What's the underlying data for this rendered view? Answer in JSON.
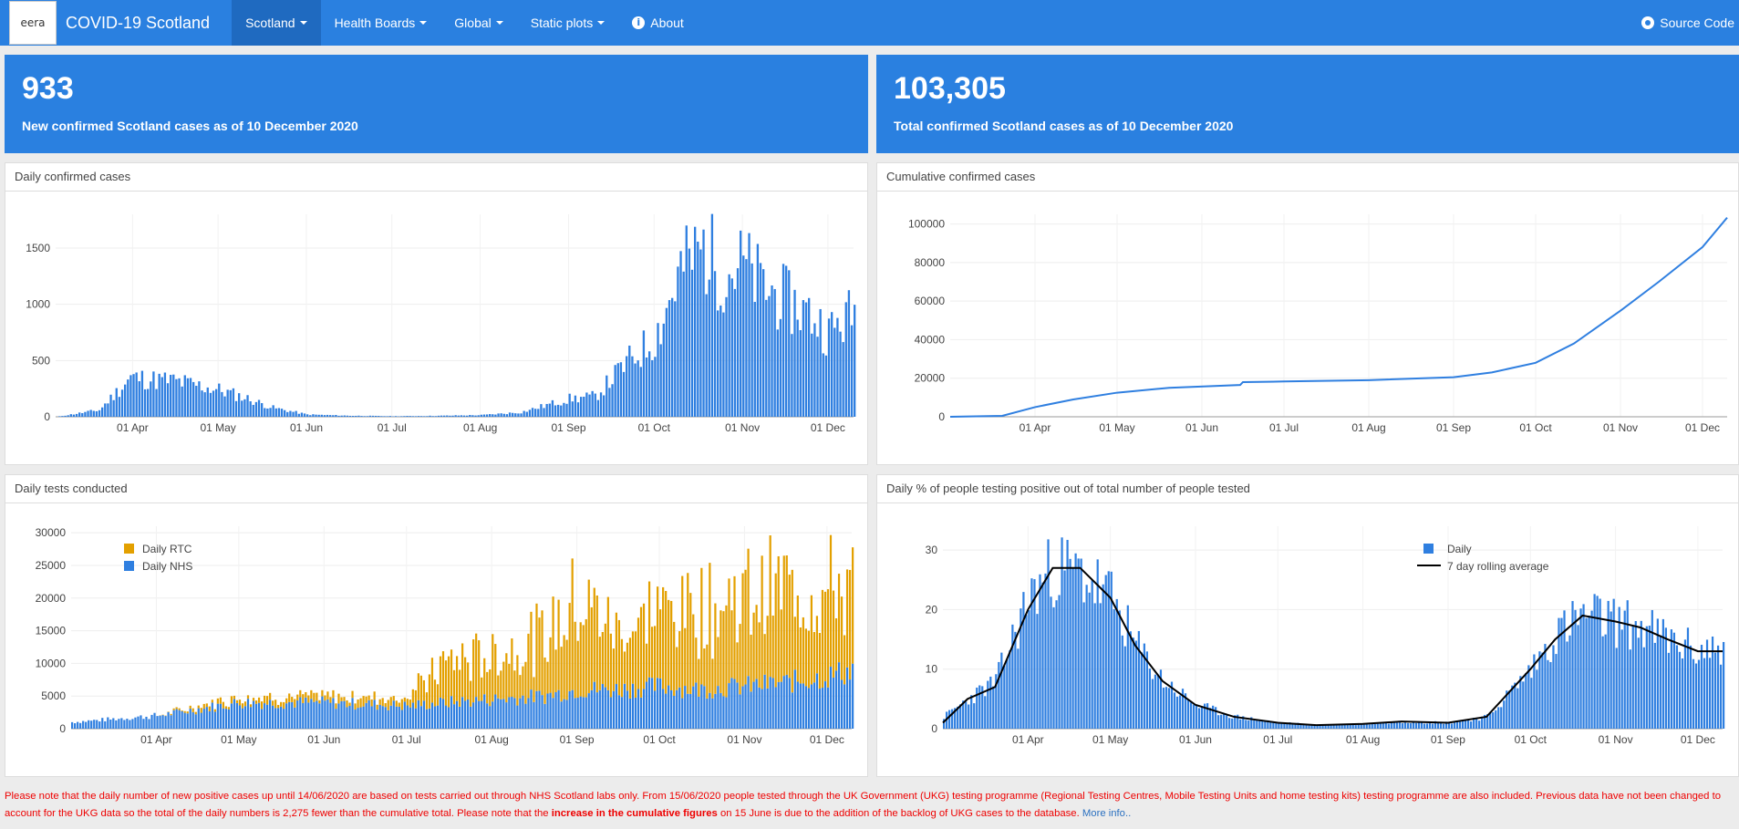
{
  "header": {
    "logo_text": "eera",
    "brand": "COVID-19 Scotland",
    "nav": [
      {
        "label": "Scotland",
        "dropdown": true,
        "active": true
      },
      {
        "label": "Health Boards",
        "dropdown": true,
        "active": false
      },
      {
        "label": "Global",
        "dropdown": true,
        "active": false
      },
      {
        "label": "Static plots",
        "dropdown": true,
        "active": false
      }
    ],
    "about": "About",
    "source_code": "Source Code"
  },
  "valueboxes": {
    "new_cases": {
      "value": "933",
      "subtitle": "New confirmed Scotland cases as of 10 December 2020"
    },
    "total_cases": {
      "value": "103,305",
      "subtitle": "Total confirmed Scotland cases as of 10 December 2020"
    }
  },
  "panels": {
    "daily": "Daily confirmed cases",
    "cumulative": "Cumulative confirmed cases",
    "tests": "Daily tests conducted",
    "positivity": "Daily % of people testing positive out of total number of people tested"
  },
  "colors": {
    "accent": "#2a80e0",
    "bar_blue": "#2f7fe0",
    "bar_orange": "#e3a000"
  },
  "chart_data": [
    {
      "type": "bar",
      "title": "Daily confirmed cases",
      "x": [
        "2020-03-05",
        "2020-03-20",
        "2020-03-31",
        "2020-04-08",
        "2020-04-15",
        "2020-04-25",
        "2020-05-01",
        "2020-05-10",
        "2020-05-20",
        "2020-06-01",
        "2020-06-15",
        "2020-07-01",
        "2020-07-15",
        "2020-08-01",
        "2020-08-15",
        "2020-09-01",
        "2020-09-10",
        "2020-09-20",
        "2020-10-01",
        "2020-10-10",
        "2020-10-18",
        "2020-10-25",
        "2020-11-01",
        "2020-11-08",
        "2020-11-15",
        "2020-11-25",
        "2020-12-01",
        "2020-12-10"
      ],
      "values": [
        0,
        60,
        350,
        330,
        320,
        270,
        240,
        170,
        80,
        20,
        10,
        5,
        8,
        15,
        40,
        160,
        180,
        450,
        700,
        1300,
        1500,
        1280,
        1350,
        1150,
        1050,
        900,
        750,
        933
      ],
      "xticks": [
        "01 Apr",
        "01 May",
        "01 Jun",
        "01 Jul",
        "01 Aug",
        "01 Sep",
        "01 Oct",
        "01 Nov",
        "01 Dec"
      ],
      "yticks": [
        "0",
        "500",
        "1000",
        "1500"
      ],
      "ylim": [
        0,
        1800
      ]
    },
    {
      "type": "line",
      "title": "Cumulative confirmed cases",
      "x": [
        "2020-03-01",
        "2020-03-20",
        "2020-04-01",
        "2020-04-15",
        "2020-05-01",
        "2020-05-20",
        "2020-06-15",
        "2020-06-16",
        "2020-07-01",
        "2020-08-01",
        "2020-09-01",
        "2020-09-15",
        "2020-10-01",
        "2020-10-15",
        "2020-11-01",
        "2020-11-15",
        "2020-12-01",
        "2020-12-10"
      ],
      "values": [
        0,
        500,
        5000,
        9000,
        12500,
        15000,
        16500,
        18000,
        18300,
        19000,
        20500,
        23000,
        28000,
        38000,
        55000,
        70000,
        88000,
        103305
      ],
      "xticks": [
        "01 Apr",
        "01 May",
        "01 Jun",
        "01 Jul",
        "01 Aug",
        "01 Sep",
        "01 Oct",
        "01 Nov",
        "01 Dec"
      ],
      "yticks": [
        "0",
        "20000",
        "40000",
        "60000",
        "80000",
        "100000"
      ],
      "ylim": [
        0,
        105000
      ]
    },
    {
      "type": "bar",
      "title": "Daily tests conducted",
      "x": [
        "2020-03-01",
        "2020-04-01",
        "2020-05-01",
        "2020-06-01",
        "2020-07-01",
        "2020-07-15",
        "2020-08-01",
        "2020-08-20",
        "2020-09-01",
        "2020-09-15",
        "2020-10-01",
        "2020-10-15",
        "2020-11-01",
        "2020-11-15",
        "2020-12-01",
        "2020-12-10"
      ],
      "series": [
        {
          "name": "Daily RTC",
          "values": [
            0,
            0,
            1000,
            1000,
            1500,
            7000,
            7500,
            10000,
            16000,
            10000,
            13000,
            14000,
            15000,
            16000,
            15000,
            14000
          ]
        },
        {
          "name": "Daily NHS",
          "values": [
            1000,
            2000,
            4000,
            4000,
            3500,
            4000,
            4500,
            5000,
            6000,
            6000,
            6500,
            6000,
            6500,
            7000,
            8000,
            9000
          ]
        }
      ],
      "xticks": [
        "01 Apr",
        "01 May",
        "01 Jun",
        "01 Jul",
        "01 Aug",
        "01 Sep",
        "01 Oct",
        "01 Nov",
        "01 Dec"
      ],
      "yticks": [
        "0",
        "5000",
        "10000",
        "15000",
        "20000",
        "25000",
        "30000"
      ],
      "ylim": [
        0,
        31000
      ],
      "legend": "top-left"
    },
    {
      "type": "bar",
      "title": "Daily % of people testing positive out of total number of people tested",
      "x": [
        "2020-03-01",
        "2020-03-10",
        "2020-03-20",
        "2020-04-01",
        "2020-04-10",
        "2020-04-20",
        "2020-05-01",
        "2020-05-10",
        "2020-05-20",
        "2020-06-01",
        "2020-06-15",
        "2020-07-01",
        "2020-07-15",
        "2020-08-01",
        "2020-08-15",
        "2020-09-01",
        "2020-09-15",
        "2020-10-01",
        "2020-10-10",
        "2020-10-20",
        "2020-11-01",
        "2020-11-10",
        "2020-11-20",
        "2020-12-01",
        "2020-12-10"
      ],
      "series": [
        {
          "name": "Daily",
          "values": [
            2,
            5,
            8,
            22,
            27,
            26,
            22,
            14,
            8,
            4,
            2,
            1,
            0.6,
            0.8,
            1.2,
            1,
            2,
            10,
            16,
            19,
            18,
            17,
            15,
            13,
            14
          ]
        },
        {
          "name": "7 day rolling average",
          "values": [
            1,
            5,
            7,
            20,
            27,
            27,
            22,
            14,
            8,
            4,
            2,
            1,
            0.6,
            0.8,
            1.2,
            1,
            2,
            10,
            15,
            19,
            18,
            17,
            15,
            13,
            13
          ]
        }
      ],
      "xticks": [
        "01 Apr",
        "01 May",
        "01 Jun",
        "01 Jul",
        "01 Aug",
        "01 Sep",
        "01 Oct",
        "01 Nov",
        "01 Dec"
      ],
      "yticks": [
        "0",
        "10",
        "20",
        "30"
      ],
      "ylim": [
        0,
        34
      ],
      "legend": "top-right"
    }
  ],
  "footer": {
    "p1": "Please note that the daily number of new positive cases up until 14/06/2020 are based on tests carried out through NHS Scotland labs only. From 15/06/2020 people tested through the UK Government (UKG) testing programme (Regional Testing Centres, Mobile Testing Units and home testing kits) testing programme are also included. Previous data have not been changed to account for the UKG data so the total of the daily numbers is 2,275 fewer than the cumulative total. Please note that the",
    "bold": "increase in the cumulative figures",
    "p2": "on 15 June is due to the addition of the backlog of UKG cases to the database.",
    "link": "More info.."
  }
}
